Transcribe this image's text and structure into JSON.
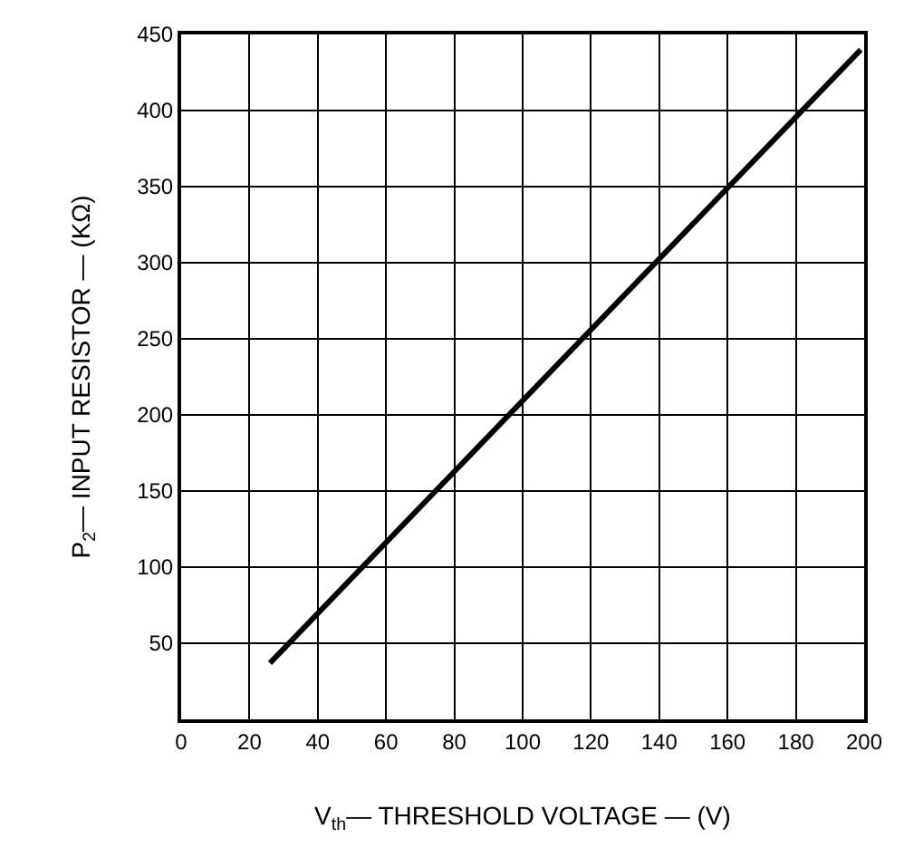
{
  "chart_data": {
    "type": "line",
    "xlabel": "V$_{th}$— THRESHOLD VOLTAGE — (V)",
    "ylabel": "P$_{2}$— INPUT RESISTOR — (KΩ)",
    "series": [
      {
        "color": "#000000",
        "x": [
          26,
          199
        ],
        "values": [
          37,
          440
        ]
      }
    ],
    "xlim": [
      0,
      200
    ],
    "xticks": [
      0,
      20,
      40,
      60,
      80,
      100,
      120,
      140,
      160,
      180,
      200
    ],
    "ylim": [
      0,
      450
    ],
    "yticks": [
      50,
      100,
      150,
      200,
      250,
      300,
      350,
      400,
      450
    ],
    "grid": true,
    "legend": false,
    "marker": "none",
    "line_style": "solid"
  }
}
